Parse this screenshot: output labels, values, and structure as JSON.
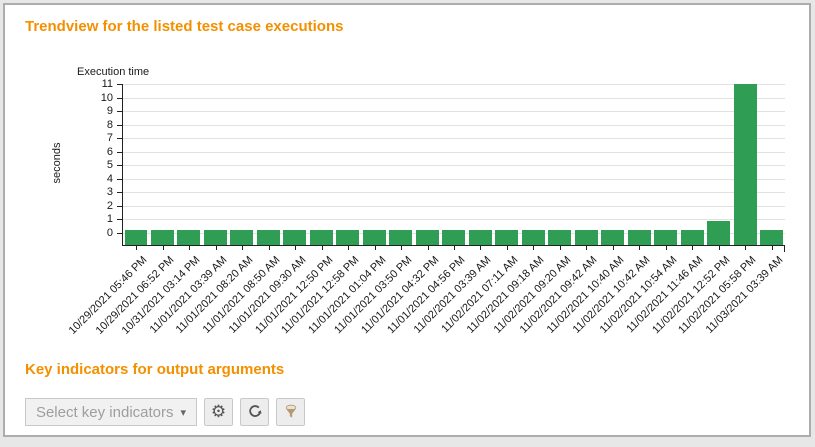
{
  "page": {
    "trend_title": "Trendview for the listed test case executions",
    "indicators_title": "Key indicators for output arguments"
  },
  "toolbar": {
    "select_label": "Select key indicators",
    "dropdown_arrow": "▾",
    "buttons": [
      {
        "name": "settings",
        "icon": "gear-icon"
      },
      {
        "name": "rerun",
        "icon": "refresh-icon"
      },
      {
        "name": "filter",
        "icon": "funnel-icon"
      }
    ]
  },
  "colors": {
    "accent_orange": "#f39000",
    "bar_green": "#2f9e54",
    "grid_gray": "#e2e2e2",
    "axis_black": "#222222",
    "muted_text": "#9e9e9e"
  },
  "chart_data": {
    "type": "bar",
    "title": "Execution time",
    "xlabel": "",
    "ylabel": "seconds",
    "ylim": [
      -0.9,
      11
    ],
    "yticks": [
      0,
      1,
      2,
      3,
      4,
      5,
      6,
      7,
      8,
      9,
      10,
      11
    ],
    "grid": true,
    "legend": false,
    "categories": [
      "10/29/2021 05:46 PM",
      "10/29/2021 06:52 PM",
      "10/31/2021 03:14 PM",
      "11/01/2021 03:39 AM",
      "11/01/2021 08:20 AM",
      "11/01/2021 08:50 AM",
      "11/01/2021 09:30 AM",
      "11/01/2021 12:50 PM",
      "11/01/2021 12:58 PM",
      "11/01/2021 01:04 PM",
      "11/01/2021 03:50 PM",
      "11/01/2021 04:32 PM",
      "11/01/2021 04:56 PM",
      "11/02/2021 03:39 AM",
      "11/02/2021 07:11 AM",
      "11/02/2021 09:18 AM",
      "11/02/2021 09:20 AM",
      "11/02/2021 09:42 AM",
      "11/02/2021 10:40 AM",
      "11/02/2021 10:42 AM",
      "11/02/2021 10:54 AM",
      "11/02/2021 11:46 AM",
      "11/02/2021 12:52 PM",
      "11/02/2021 05:58 PM",
      "11/03/2021 03:39 AM"
    ],
    "values": [
      0.2,
      0.2,
      0.2,
      0.2,
      0.2,
      0.2,
      0.2,
      0.2,
      0.2,
      0.2,
      0.2,
      0.2,
      0.2,
      0.2,
      0.2,
      0.2,
      0.2,
      0.2,
      0.2,
      0.2,
      0.2,
      0.2,
      0.9,
      11,
      0.2
    ]
  }
}
